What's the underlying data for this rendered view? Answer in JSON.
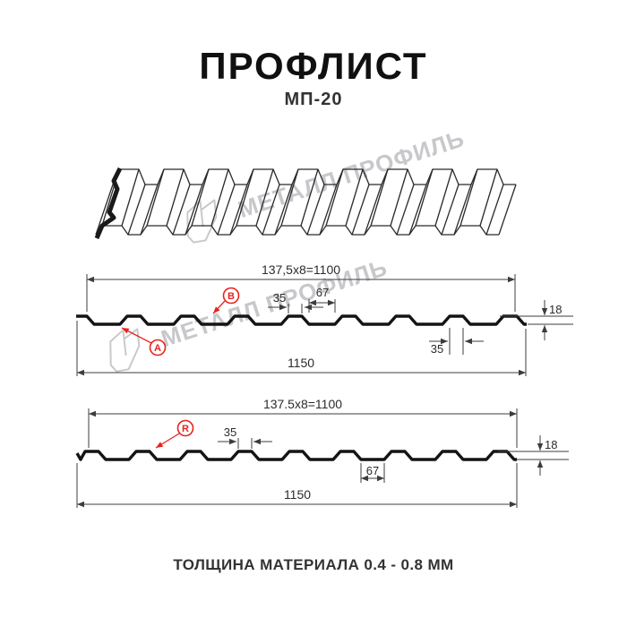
{
  "page": {
    "title": "ПРОФЛИСТ",
    "subtitle": "МП-20",
    "footer": "ТОЛЩИНА МАТЕРИАЛА 0.4 - 0.8 ММ"
  },
  "watermark": {
    "brand": "МЕТАЛЛ ПРОФИЛЬ"
  },
  "profile_top": {
    "width_formula": "137,5x8=1100",
    "crest_width": "35",
    "valley_width": "67",
    "height": "18",
    "bottom_rib_width": "35",
    "total_width": "1150",
    "label_a": "A",
    "label_b": "B"
  },
  "profile_bottom": {
    "width_formula": "137.5x8=1100",
    "crest_width": "35",
    "valley_width": "67",
    "height": "18",
    "total_width": "1150",
    "label_r": "R"
  },
  "colors": {
    "accent_red": "#E8231E",
    "drawing_line": "#141414",
    "dim_line": "#3C3C3C",
    "watermark_gray": "#C7C8CB"
  }
}
